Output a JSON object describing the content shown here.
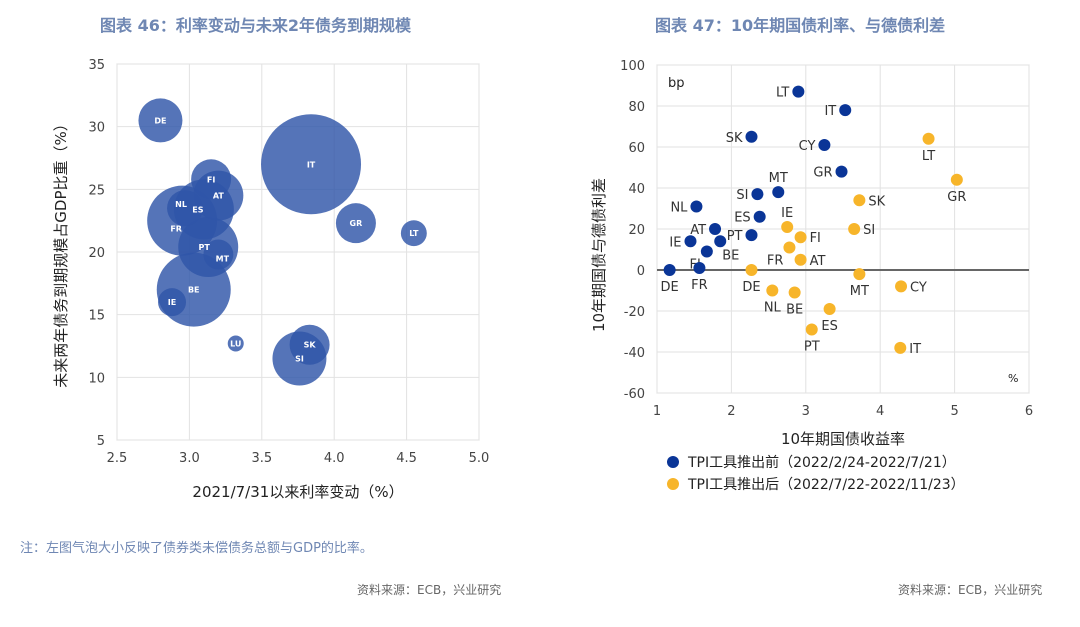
{
  "left": {
    "title": "图表 46：利率变动与未来2年债务到期规模",
    "note": "注：左图气泡大小反映了债券类未偿债务总额与GDP的比率。",
    "source": "资料来源：ECB，兴业研究"
  },
  "right": {
    "title": "图表 47：10年期国债利率、与德债利差",
    "source": "资料来源：ECB，兴业研究"
  },
  "chart_data": [
    {
      "type": "scatter",
      "subtype": "bubble",
      "xlabel": "2021/7/31以来利率变动（%）",
      "ylabel": "未来两年债务到期规模占GDP比重（%）",
      "xlim": [
        2.5,
        5.0
      ],
      "ylim": [
        5,
        35
      ],
      "xticks": [
        "2.5",
        "3.0",
        "3.5",
        "4.0",
        "4.5",
        "5.0"
      ],
      "yticks": [
        "5",
        "10",
        "15",
        "20",
        "25",
        "30",
        "35"
      ],
      "grid": true,
      "color": "#2f55a8",
      "points": [
        {
          "label": "IT",
          "x": 3.84,
          "y": 27.0,
          "size": 625
        },
        {
          "label": "BE",
          "x": 3.03,
          "y": 17.0,
          "size": 342
        },
        {
          "label": "FR",
          "x": 2.95,
          "y": 22.5,
          "size": 306
        },
        {
          "label": "ES",
          "x": 3.1,
          "y": 23.4,
          "size": 225
        },
        {
          "label": "PT",
          "x": 3.13,
          "y": 20.4,
          "size": 225
        },
        {
          "label": "SI",
          "x": 3.76,
          "y": 11.5,
          "size": 182
        },
        {
          "label": "AT",
          "x": 3.2,
          "y": 24.5,
          "size": 156
        },
        {
          "label": "DE",
          "x": 2.8,
          "y": 30.5,
          "size": 121
        },
        {
          "label": "FI",
          "x": 3.15,
          "y": 25.8,
          "size": 100
        },
        {
          "label": "GR",
          "x": 4.15,
          "y": 22.3,
          "size": 100
        },
        {
          "label": "SK",
          "x": 3.83,
          "y": 12.6,
          "size": 100
        },
        {
          "label": "NL",
          "x": 2.97,
          "y": 23.5,
          "size": 81
        },
        {
          "label": "MT",
          "x": 3.2,
          "y": 19.8,
          "size": 56
        },
        {
          "label": "IE",
          "x": 2.88,
          "y": 16.0,
          "size": 49
        },
        {
          "label": "LT",
          "x": 4.55,
          "y": 21.5,
          "size": 42
        },
        {
          "label": "LU",
          "x": 3.32,
          "y": 12.7,
          "size": 16
        }
      ]
    },
    {
      "type": "scatter",
      "xlabel": "10年期国债收益率",
      "ylabel": "10年期国债与德债利差",
      "y_unit": "bp",
      "x_unit": "%",
      "xlim": [
        1,
        6
      ],
      "ylim": [
        -60,
        100
      ],
      "xticks": [
        "1",
        "2",
        "3",
        "4",
        "5",
        "6"
      ],
      "yticks": [
        "-60",
        "-40",
        "-20",
        "0",
        "20",
        "40",
        "60",
        "80",
        "100"
      ],
      "grid": true,
      "legend_position": "bottom",
      "series": [
        {
          "name": "TPI工具推出前（2022/2/24-2022/7/21）",
          "color": "#0a3597",
          "points": [
            {
              "label": "LT",
              "x": 2.9,
              "y": 87
            },
            {
              "label": "IT",
              "x": 3.53,
              "y": 78
            },
            {
              "label": "SK",
              "x": 2.27,
              "y": 65
            },
            {
              "label": "CY",
              "x": 3.25,
              "y": 61
            },
            {
              "label": "GR",
              "x": 3.48,
              "y": 48
            },
            {
              "label": "MT",
              "x": 2.63,
              "y": 38
            },
            {
              "label": "SI",
              "x": 2.35,
              "y": 37
            },
            {
              "label": "NL",
              "x": 1.53,
              "y": 31
            },
            {
              "label": "ES",
              "x": 2.38,
              "y": 26
            },
            {
              "label": "AT",
              "x": 1.78,
              "y": 20
            },
            {
              "label": "PT",
              "x": 2.27,
              "y": 17
            },
            {
              "label": "IE",
              "x": 1.45,
              "y": 14
            },
            {
              "label": "BE",
              "x": 1.85,
              "y": 14
            },
            {
              "label": "FI",
              "x": 1.67,
              "y": 9
            },
            {
              "label": "DE",
              "x": 1.17,
              "y": 0
            },
            {
              "label": "FR",
              "x": 1.57,
              "y": 1
            }
          ]
        },
        {
          "name": "TPI工具推出后（2022/7/22-2022/11/23）",
          "color": "#f7b52a",
          "points": [
            {
              "label": "LT",
              "x": 4.65,
              "y": 64
            },
            {
              "label": "GR",
              "x": 5.03,
              "y": 44
            },
            {
              "label": "SK",
              "x": 3.72,
              "y": 34
            },
            {
              "label": "SI",
              "x": 3.65,
              "y": 20
            },
            {
              "label": "IE",
              "x": 2.75,
              "y": 21
            },
            {
              "label": "FI",
              "x": 2.93,
              "y": 16
            },
            {
              "label": "FR",
              "x": 2.78,
              "y": 11
            },
            {
              "label": "AT",
              "x": 2.93,
              "y": 5
            },
            {
              "label": "DE",
              "x": 2.27,
              "y": 0
            },
            {
              "label": "MT",
              "x": 3.72,
              "y": -2
            },
            {
              "label": "CY",
              "x": 4.28,
              "y": -8
            },
            {
              "label": "NL",
              "x": 2.55,
              "y": -10
            },
            {
              "label": "BE",
              "x": 2.85,
              "y": -11
            },
            {
              "label": "ES",
              "x": 3.32,
              "y": -19
            },
            {
              "label": "PT",
              "x": 3.08,
              "y": -29
            },
            {
              "label": "IT",
              "x": 4.27,
              "y": -38
            }
          ]
        }
      ]
    }
  ]
}
